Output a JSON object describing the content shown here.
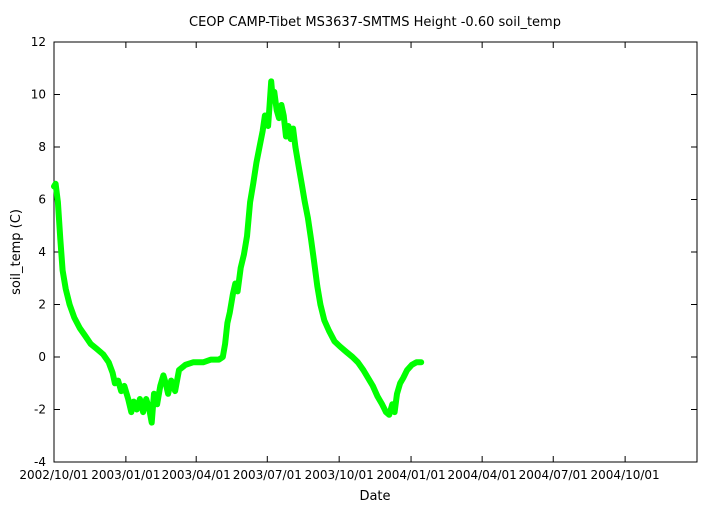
{
  "chart_data": {
    "type": "line",
    "title": "CEOP CAMP-Tibet MS3637-SMTMS Height -0.60 soil_temp",
    "xlabel": "Date",
    "ylabel": "soil_temp (C)",
    "xlim": [
      "2002-10-01",
      "2005-01-01"
    ],
    "ylim": [
      -4,
      12
    ],
    "yticks": [
      -4,
      -2,
      0,
      2,
      4,
      6,
      8,
      10,
      12
    ],
    "xticks": [
      {
        "date": "2002-10-01",
        "label": "2002/10/01"
      },
      {
        "date": "2003-01-01",
        "label": "2003/01/01"
      },
      {
        "date": "2003-04-01",
        "label": "2003/04/01"
      },
      {
        "date": "2003-07-01",
        "label": "2003/07/01"
      },
      {
        "date": "2003-10-01",
        "label": "2003/10/01"
      },
      {
        "date": "2004-01-01",
        "label": "2004/01/01"
      },
      {
        "date": "2004-04-01",
        "label": "2004/04/01"
      },
      {
        "date": "2004-07-01",
        "label": "2004/07/01"
      },
      {
        "date": "2004-10-01",
        "label": "2004/10/01"
      }
    ],
    "grid": false,
    "series": [
      {
        "color": "#00ff00",
        "points": [
          [
            "2002-10-01",
            6.5
          ],
          [
            "2002-10-03",
            6.6
          ],
          [
            "2002-10-06",
            5.9
          ],
          [
            "2002-10-09",
            4.5
          ],
          [
            "2002-10-12",
            3.3
          ],
          [
            "2002-10-16",
            2.6
          ],
          [
            "2002-10-21",
            2.0
          ],
          [
            "2002-10-27",
            1.5
          ],
          [
            "2002-11-03",
            1.1
          ],
          [
            "2002-11-10",
            0.8
          ],
          [
            "2002-11-17",
            0.5
          ],
          [
            "2002-11-25",
            0.3
          ],
          [
            "2002-12-03",
            0.1
          ],
          [
            "2002-12-10",
            -0.2
          ],
          [
            "2002-12-15",
            -0.6
          ],
          [
            "2002-12-18",
            -1.0
          ],
          [
            "2002-12-22",
            -0.9
          ],
          [
            "2002-12-26",
            -1.3
          ],
          [
            "2002-12-30",
            -1.1
          ],
          [
            "2003-01-04",
            -1.6
          ],
          [
            "2003-01-08",
            -2.1
          ],
          [
            "2003-01-11",
            -1.7
          ],
          [
            "2003-01-15",
            -2.0
          ],
          [
            "2003-01-19",
            -1.6
          ],
          [
            "2003-01-23",
            -2.1
          ],
          [
            "2003-01-27",
            -1.6
          ],
          [
            "2003-01-31",
            -2.0
          ],
          [
            "2003-02-03",
            -2.5
          ],
          [
            "2003-02-06",
            -1.4
          ],
          [
            "2003-02-10",
            -1.8
          ],
          [
            "2003-02-14",
            -1.1
          ],
          [
            "2003-02-18",
            -0.7
          ],
          [
            "2003-02-21",
            -1.0
          ],
          [
            "2003-02-24",
            -1.4
          ],
          [
            "2003-02-28",
            -0.9
          ],
          [
            "2003-03-05",
            -1.3
          ],
          [
            "2003-03-10",
            -0.5
          ],
          [
            "2003-03-18",
            -0.3
          ],
          [
            "2003-03-28",
            -0.2
          ],
          [
            "2003-04-10",
            -0.2
          ],
          [
            "2003-04-20",
            -0.1
          ],
          [
            "2003-04-30",
            -0.1
          ],
          [
            "2003-05-05",
            0.0
          ],
          [
            "2003-05-08",
            0.5
          ],
          [
            "2003-05-11",
            1.3
          ],
          [
            "2003-05-14",
            1.7
          ],
          [
            "2003-05-18",
            2.4
          ],
          [
            "2003-05-21",
            2.8
          ],
          [
            "2003-05-24",
            2.5
          ],
          [
            "2003-05-28",
            3.4
          ],
          [
            "2003-06-01",
            3.9
          ],
          [
            "2003-06-05",
            4.6
          ],
          [
            "2003-06-09",
            5.9
          ],
          [
            "2003-06-13",
            6.6
          ],
          [
            "2003-06-17",
            7.4
          ],
          [
            "2003-06-21",
            8.0
          ],
          [
            "2003-06-25",
            8.6
          ],
          [
            "2003-06-28",
            9.2
          ],
          [
            "2003-07-02",
            8.8
          ],
          [
            "2003-07-04",
            9.6
          ],
          [
            "2003-07-06",
            10.5
          ],
          [
            "2003-07-08",
            9.8
          ],
          [
            "2003-07-10",
            10.1
          ],
          [
            "2003-07-13",
            9.4
          ],
          [
            "2003-07-16",
            9.1
          ],
          [
            "2003-07-19",
            9.6
          ],
          [
            "2003-07-22",
            9.2
          ],
          [
            "2003-07-25",
            8.4
          ],
          [
            "2003-07-28",
            8.8
          ],
          [
            "2003-07-31",
            8.3
          ],
          [
            "2003-08-03",
            8.7
          ],
          [
            "2003-08-06",
            8.0
          ],
          [
            "2003-08-10",
            7.3
          ],
          [
            "2003-08-14",
            6.6
          ],
          [
            "2003-08-18",
            5.9
          ],
          [
            "2003-08-22",
            5.3
          ],
          [
            "2003-08-26",
            4.5
          ],
          [
            "2003-08-30",
            3.6
          ],
          [
            "2003-09-03",
            2.7
          ],
          [
            "2003-09-07",
            2.0
          ],
          [
            "2003-09-12",
            1.4
          ],
          [
            "2003-09-18",
            1.0
          ],
          [
            "2003-09-25",
            0.6
          ],
          [
            "2003-10-02",
            0.4
          ],
          [
            "2003-10-10",
            0.2
          ],
          [
            "2003-10-18",
            0.0
          ],
          [
            "2003-10-25",
            -0.2
          ],
          [
            "2003-11-01",
            -0.5
          ],
          [
            "2003-11-07",
            -0.8
          ],
          [
            "2003-11-13",
            -1.1
          ],
          [
            "2003-11-19",
            -1.5
          ],
          [
            "2003-11-25",
            -1.8
          ],
          [
            "2003-11-30",
            -2.1
          ],
          [
            "2003-12-04",
            -2.2
          ],
          [
            "2003-12-08",
            -1.8
          ],
          [
            "2003-12-11",
            -2.1
          ],
          [
            "2003-12-14",
            -1.4
          ],
          [
            "2003-12-18",
            -1.0
          ],
          [
            "2003-12-22",
            -0.8
          ],
          [
            "2003-12-27",
            -0.5
          ],
          [
            "2004-01-02",
            -0.3
          ],
          [
            "2004-01-08",
            -0.2
          ],
          [
            "2004-01-14",
            -0.2
          ]
        ]
      }
    ]
  }
}
